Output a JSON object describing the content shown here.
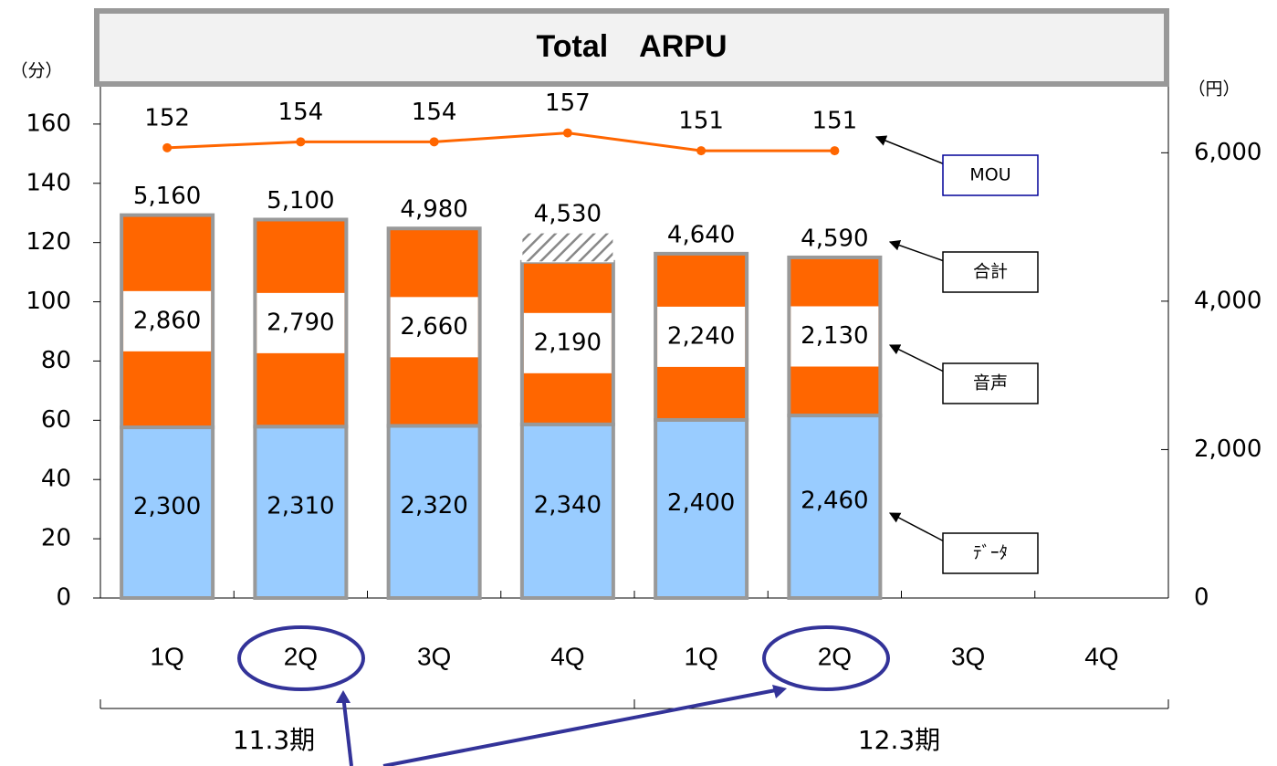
{
  "chart_data": {
    "type": "bar",
    "title": "Total　ARPU",
    "y_label": "（分）",
    "y2_label": "（円）",
    "categories": [
      "1Q",
      "2Q",
      "3Q",
      "4Q",
      "1Q",
      "2Q",
      "3Q",
      "4Q"
    ],
    "groups": [
      {
        "label": "11.3期",
        "span": [
          0,
          4
        ]
      },
      {
        "label": "12.3期",
        "span": [
          4,
          8
        ]
      }
    ],
    "series": [
      {
        "name": "ﾃﾞｰﾀ",
        "type": "bar",
        "axis": "y2",
        "color": "#99ccff",
        "values": [
          2300,
          2310,
          2320,
          2340,
          2400,
          2460,
          null,
          null
        ],
        "value_labels": [
          "2,300",
          "2,310",
          "2,320",
          "2,340",
          "2,400",
          "2,460",
          null,
          null
        ]
      },
      {
        "name": "音声",
        "type": "bar",
        "axis": "y2",
        "color": "#ff6600",
        "values": [
          2860,
          2790,
          2660,
          2190,
          2240,
          2130,
          null,
          null
        ],
        "value_labels": [
          "2,860",
          "2,790",
          "2,660",
          "2,190",
          "2,240",
          "2,130",
          null,
          null
        ]
      },
      {
        "type": "bar",
        "axis": "y2",
        "pattern": "hatch",
        "color": "#888888",
        "values": [
          null,
          null,
          null,
          390,
          null,
          null,
          null,
          null
        ]
      },
      {
        "name": "MOU",
        "type": "line",
        "axis": "y",
        "color": "#ff6600",
        "values": [
          152,
          154,
          154,
          157,
          151,
          151,
          null,
          null
        ]
      }
    ],
    "totals": {
      "name": "合計",
      "values": [
        5160,
        5100,
        4980,
        4530,
        4640,
        4590,
        null,
        null
      ],
      "value_labels": [
        "5,160",
        "5,100",
        "4,980",
        "4,530",
        "4,640",
        "4,590",
        null,
        null
      ]
    },
    "ylim": [
      0,
      172.6
    ],
    "yticks": [
      0,
      20,
      40,
      60,
      80,
      100,
      120,
      140,
      160
    ],
    "y2lim": [
      0,
      6890
    ],
    "y2ticks": [
      0,
      {
        "value": 2000,
        "label": "2,000"
      },
      {
        "value": 4000,
        "label": "4,000"
      },
      {
        "value": 6000,
        "label": "6,000"
      }
    ]
  }
}
